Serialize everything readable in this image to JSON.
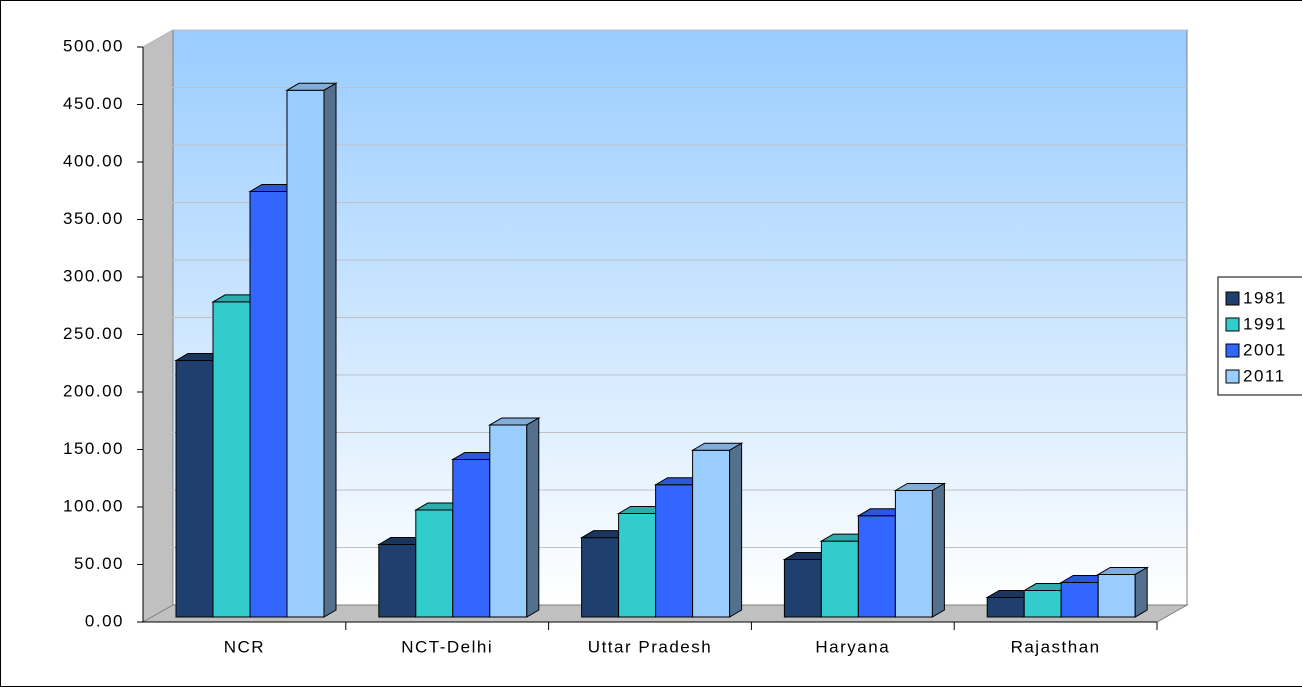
{
  "chart_data": {
    "type": "bar3d",
    "categories": [
      "NCR",
      "NCT-Delhi",
      "Uttar Pradesh",
      "Haryana",
      "Rajasthan"
    ],
    "series": [
      {
        "name": "1981",
        "color": "#1f3f6e",
        "values": [
          223,
          63,
          69,
          50,
          17
        ]
      },
      {
        "name": "1991",
        "color": "#33cccc",
        "values": [
          274,
          93,
          90,
          66,
          23
        ]
      },
      {
        "name": "2001",
        "color": "#3366ff",
        "values": [
          370,
          137,
          115,
          88,
          30
        ]
      },
      {
        "name": "2011",
        "color": "#99ccff",
        "values": [
          458,
          167,
          145,
          110,
          37
        ]
      }
    ],
    "ylim": [
      0,
      500
    ],
    "yticks": [
      {
        "value": 0,
        "label": "0.00"
      },
      {
        "value": 50,
        "label": "50.00"
      },
      {
        "value": 100,
        "label": "100.00"
      },
      {
        "value": 150,
        "label": "150.00"
      },
      {
        "value": 200,
        "label": "200.00"
      },
      {
        "value": 250,
        "label": "250.00"
      },
      {
        "value": 300,
        "label": "300.00"
      },
      {
        "value": 350,
        "label": "350.00"
      },
      {
        "value": 400,
        "label": "400.00"
      },
      {
        "value": 450,
        "label": "450.00"
      },
      {
        "value": 500,
        "label": "500.00"
      }
    ],
    "grid": true,
    "legend": "right"
  }
}
